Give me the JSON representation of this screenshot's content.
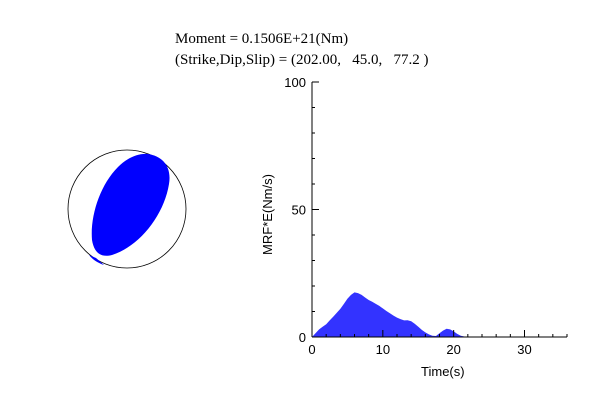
{
  "header": {
    "moment_text": "Moment = 0.1506E+21(Nm)",
    "mechanism_text": "(Strike,Dip,Slip) = (202.00,   45.0,   77.2 )"
  },
  "colors": {
    "beachball_fill": "#0000ff",
    "mrf_fill": "#3333ff",
    "axis": "#000000"
  },
  "chart_data": {
    "type": "area",
    "xlabel": "Time(s)",
    "ylabel": "MRF*E(Nm/s)",
    "xlim": [
      0,
      36
    ],
    "ylim": [
      0,
      100
    ],
    "x_ticks": [
      0,
      10,
      20,
      30
    ],
    "y_ticks": [
      0,
      50,
      100
    ],
    "grid": false,
    "legend": "none",
    "x": [
      0,
      0.5,
      1,
      1.5,
      2,
      2.5,
      3,
      3.5,
      4,
      4.5,
      5,
      5.5,
      6,
      6.5,
      7,
      7.5,
      8,
      8.5,
      9,
      9.5,
      10,
      10.5,
      11,
      11.5,
      12,
      12.5,
      13,
      13.5,
      14,
      14.5,
      15,
      15.5,
      16,
      16.5,
      17,
      17.5,
      18,
      18.5,
      19,
      19.5,
      20,
      20.5,
      21,
      21.5,
      22,
      23,
      24,
      26,
      30,
      36
    ],
    "y": [
      0,
      1.5,
      3,
      4,
      5,
      6.5,
      8,
      9.5,
      11,
      13,
      15,
      16.5,
      17.5,
      17.2,
      16.5,
      15.5,
      14.5,
      13.8,
      13,
      12.2,
      11.2,
      10.2,
      9.3,
      8.4,
      7.6,
      7,
      6.5,
      6.6,
      6.2,
      5.2,
      4,
      2.8,
      1.8,
      1,
      0.5,
      0.4,
      1.5,
      2.5,
      3.2,
      3,
      2.2,
      1.2,
      0.5,
      0.2,
      0,
      0,
      0,
      0,
      0,
      0
    ]
  },
  "beachball": {
    "strike": 202.0,
    "dip": 45.0,
    "slip": 77.2
  }
}
